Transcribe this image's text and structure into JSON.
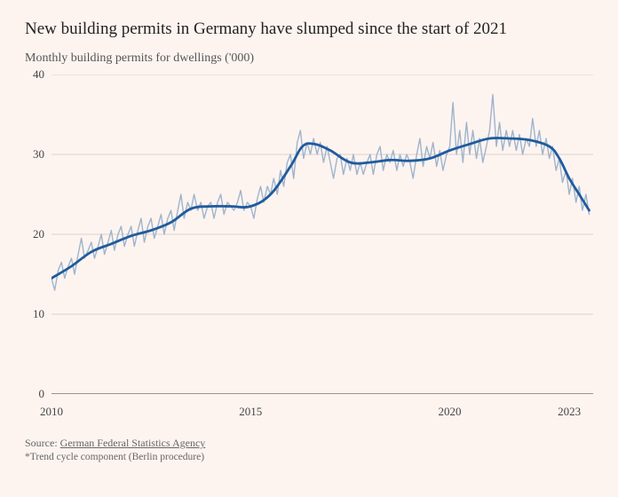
{
  "title": "New building permits in Germany have slumped since the start of 2021",
  "subtitle": "Monthly building permits for dwellings ('000)",
  "source_label": "Source: ",
  "source_link_text": "German Federal Statistics Agency",
  "footnote": "*Trend cycle component (Berlin procedure)",
  "chart": {
    "type": "line",
    "background_color": "#fdf4f0",
    "ylim": [
      0,
      40
    ],
    "yticks": [
      0,
      10,
      20,
      30,
      40
    ],
    "xlim": [
      2010,
      2023.6
    ],
    "xticks": [
      2010,
      2015,
      2020,
      2023
    ],
    "grid_color": "#b8b0ac",
    "grid_width": 0.6,
    "axis_color": "#333",
    "tick_fontsize": 13,
    "raw_series": {
      "color": "#9fb4cc",
      "width": 1.4,
      "points": [
        [
          2010.0,
          14.5
        ],
        [
          2010.08,
          13.0
        ],
        [
          2010.17,
          15.5
        ],
        [
          2010.25,
          16.5
        ],
        [
          2010.33,
          14.5
        ],
        [
          2010.42,
          16.0
        ],
        [
          2010.5,
          17.0
        ],
        [
          2010.58,
          15.0
        ],
        [
          2010.67,
          17.5
        ],
        [
          2010.75,
          19.5
        ],
        [
          2010.83,
          17.0
        ],
        [
          2010.92,
          18.0
        ],
        [
          2011.0,
          19.0
        ],
        [
          2011.08,
          17.0
        ],
        [
          2011.17,
          18.5
        ],
        [
          2011.25,
          20.0
        ],
        [
          2011.33,
          17.5
        ],
        [
          2011.42,
          19.0
        ],
        [
          2011.5,
          20.5
        ],
        [
          2011.58,
          18.0
        ],
        [
          2011.67,
          20.0
        ],
        [
          2011.75,
          21.0
        ],
        [
          2011.83,
          18.5
        ],
        [
          2011.92,
          20.0
        ],
        [
          2012.0,
          21.0
        ],
        [
          2012.08,
          18.5
        ],
        [
          2012.17,
          20.5
        ],
        [
          2012.25,
          22.0
        ],
        [
          2012.33,
          19.0
        ],
        [
          2012.42,
          21.0
        ],
        [
          2012.5,
          22.0
        ],
        [
          2012.58,
          19.5
        ],
        [
          2012.67,
          21.0
        ],
        [
          2012.75,
          22.5
        ],
        [
          2012.83,
          20.0
        ],
        [
          2012.92,
          22.0
        ],
        [
          2013.0,
          23.0
        ],
        [
          2013.08,
          20.5
        ],
        [
          2013.17,
          23.0
        ],
        [
          2013.25,
          25.0
        ],
        [
          2013.33,
          22.0
        ],
        [
          2013.42,
          24.0
        ],
        [
          2013.5,
          23.0
        ],
        [
          2013.58,
          25.0
        ],
        [
          2013.67,
          23.0
        ],
        [
          2013.75,
          24.0
        ],
        [
          2013.83,
          22.0
        ],
        [
          2013.92,
          23.5
        ],
        [
          2014.0,
          24.0
        ],
        [
          2014.08,
          22.0
        ],
        [
          2014.17,
          24.0
        ],
        [
          2014.25,
          25.0
        ],
        [
          2014.33,
          22.5
        ],
        [
          2014.42,
          24.0
        ],
        [
          2014.5,
          23.5
        ],
        [
          2014.58,
          23.0
        ],
        [
          2014.67,
          24.0
        ],
        [
          2014.75,
          25.5
        ],
        [
          2014.83,
          23.0
        ],
        [
          2014.92,
          24.0
        ],
        [
          2015.0,
          23.5
        ],
        [
          2015.08,
          22.0
        ],
        [
          2015.17,
          24.5
        ],
        [
          2015.25,
          26.0
        ],
        [
          2015.33,
          24.0
        ],
        [
          2015.42,
          26.0
        ],
        [
          2015.5,
          25.0
        ],
        [
          2015.58,
          27.0
        ],
        [
          2015.67,
          25.0
        ],
        [
          2015.75,
          28.0
        ],
        [
          2015.83,
          26.0
        ],
        [
          2015.92,
          29.0
        ],
        [
          2016.0,
          30.0
        ],
        [
          2016.08,
          27.0
        ],
        [
          2016.17,
          31.5
        ],
        [
          2016.25,
          33.0
        ],
        [
          2016.33,
          29.5
        ],
        [
          2016.42,
          31.5
        ],
        [
          2016.5,
          30.0
        ],
        [
          2016.58,
          32.0
        ],
        [
          2016.67,
          30.0
        ],
        [
          2016.75,
          31.5
        ],
        [
          2016.83,
          29.0
        ],
        [
          2016.92,
          31.0
        ],
        [
          2017.0,
          29.0
        ],
        [
          2017.08,
          27.0
        ],
        [
          2017.17,
          29.5
        ],
        [
          2017.25,
          30.0
        ],
        [
          2017.33,
          27.5
        ],
        [
          2017.42,
          29.5
        ],
        [
          2017.5,
          28.0
        ],
        [
          2017.58,
          30.0
        ],
        [
          2017.67,
          27.5
        ],
        [
          2017.75,
          29.0
        ],
        [
          2017.83,
          27.5
        ],
        [
          2017.92,
          29.0
        ],
        [
          2018.0,
          30.0
        ],
        [
          2018.08,
          27.5
        ],
        [
          2018.17,
          30.0
        ],
        [
          2018.25,
          31.0
        ],
        [
          2018.33,
          28.0
        ],
        [
          2018.42,
          30.0
        ],
        [
          2018.5,
          29.0
        ],
        [
          2018.58,
          30.5
        ],
        [
          2018.67,
          28.0
        ],
        [
          2018.75,
          30.0
        ],
        [
          2018.83,
          28.5
        ],
        [
          2018.92,
          30.0
        ],
        [
          2019.0,
          29.0
        ],
        [
          2019.08,
          27.0
        ],
        [
          2019.17,
          30.0
        ],
        [
          2019.25,
          32.0
        ],
        [
          2019.33,
          28.5
        ],
        [
          2019.42,
          31.0
        ],
        [
          2019.5,
          29.5
        ],
        [
          2019.58,
          31.5
        ],
        [
          2019.67,
          28.5
        ],
        [
          2019.75,
          30.5
        ],
        [
          2019.83,
          28.0
        ],
        [
          2019.92,
          30.0
        ],
        [
          2020.0,
          31.0
        ],
        [
          2020.08,
          36.5
        ],
        [
          2020.17,
          30.0
        ],
        [
          2020.25,
          33.0
        ],
        [
          2020.33,
          29.0
        ],
        [
          2020.42,
          34.0
        ],
        [
          2020.5,
          30.0
        ],
        [
          2020.58,
          33.0
        ],
        [
          2020.67,
          29.5
        ],
        [
          2020.75,
          32.0
        ],
        [
          2020.83,
          29.0
        ],
        [
          2020.92,
          31.0
        ],
        [
          2021.0,
          33.0
        ],
        [
          2021.08,
          37.5
        ],
        [
          2021.17,
          31.0
        ],
        [
          2021.25,
          34.0
        ],
        [
          2021.33,
          30.5
        ],
        [
          2021.42,
          33.0
        ],
        [
          2021.5,
          31.0
        ],
        [
          2021.58,
          33.0
        ],
        [
          2021.67,
          30.5
        ],
        [
          2021.75,
          32.5
        ],
        [
          2021.83,
          30.0
        ],
        [
          2021.92,
          32.0
        ],
        [
          2022.0,
          31.0
        ],
        [
          2022.08,
          34.5
        ],
        [
          2022.17,
          31.0
        ],
        [
          2022.25,
          33.0
        ],
        [
          2022.33,
          30.0
        ],
        [
          2022.42,
          32.0
        ],
        [
          2022.5,
          29.5
        ],
        [
          2022.58,
          31.0
        ],
        [
          2022.67,
          28.0
        ],
        [
          2022.75,
          29.5
        ],
        [
          2022.83,
          26.5
        ],
        [
          2022.92,
          28.0
        ],
        [
          2023.0,
          25.0
        ],
        [
          2023.08,
          27.0
        ],
        [
          2023.17,
          24.0
        ],
        [
          2023.25,
          26.0
        ],
        [
          2023.33,
          23.0
        ],
        [
          2023.42,
          25.0
        ],
        [
          2023.5,
          22.5
        ]
      ]
    },
    "trend_series": {
      "color": "#1f5b9e",
      "width": 2.8,
      "points": [
        [
          2010.0,
          14.5
        ],
        [
          2010.5,
          16.0
        ],
        [
          2011.0,
          17.8
        ],
        [
          2011.5,
          18.8
        ],
        [
          2012.0,
          19.8
        ],
        [
          2012.5,
          20.5
        ],
        [
          2013.0,
          21.5
        ],
        [
          2013.5,
          23.2
        ],
        [
          2014.0,
          23.5
        ],
        [
          2014.5,
          23.5
        ],
        [
          2015.0,
          23.5
        ],
        [
          2015.5,
          25.0
        ],
        [
          2016.0,
          28.5
        ],
        [
          2016.3,
          31.0
        ],
        [
          2016.6,
          31.3
        ],
        [
          2017.0,
          30.5
        ],
        [
          2017.5,
          29.0
        ],
        [
          2018.0,
          29.0
        ],
        [
          2018.5,
          29.3
        ],
        [
          2019.0,
          29.2
        ],
        [
          2019.5,
          29.5
        ],
        [
          2020.0,
          30.5
        ],
        [
          2020.5,
          31.3
        ],
        [
          2021.0,
          32.0
        ],
        [
          2021.5,
          32.0
        ],
        [
          2022.0,
          31.8
        ],
        [
          2022.5,
          31.0
        ],
        [
          2022.75,
          29.5
        ],
        [
          2023.0,
          27.0
        ],
        [
          2023.25,
          25.0
        ],
        [
          2023.5,
          23.0
        ]
      ]
    }
  }
}
